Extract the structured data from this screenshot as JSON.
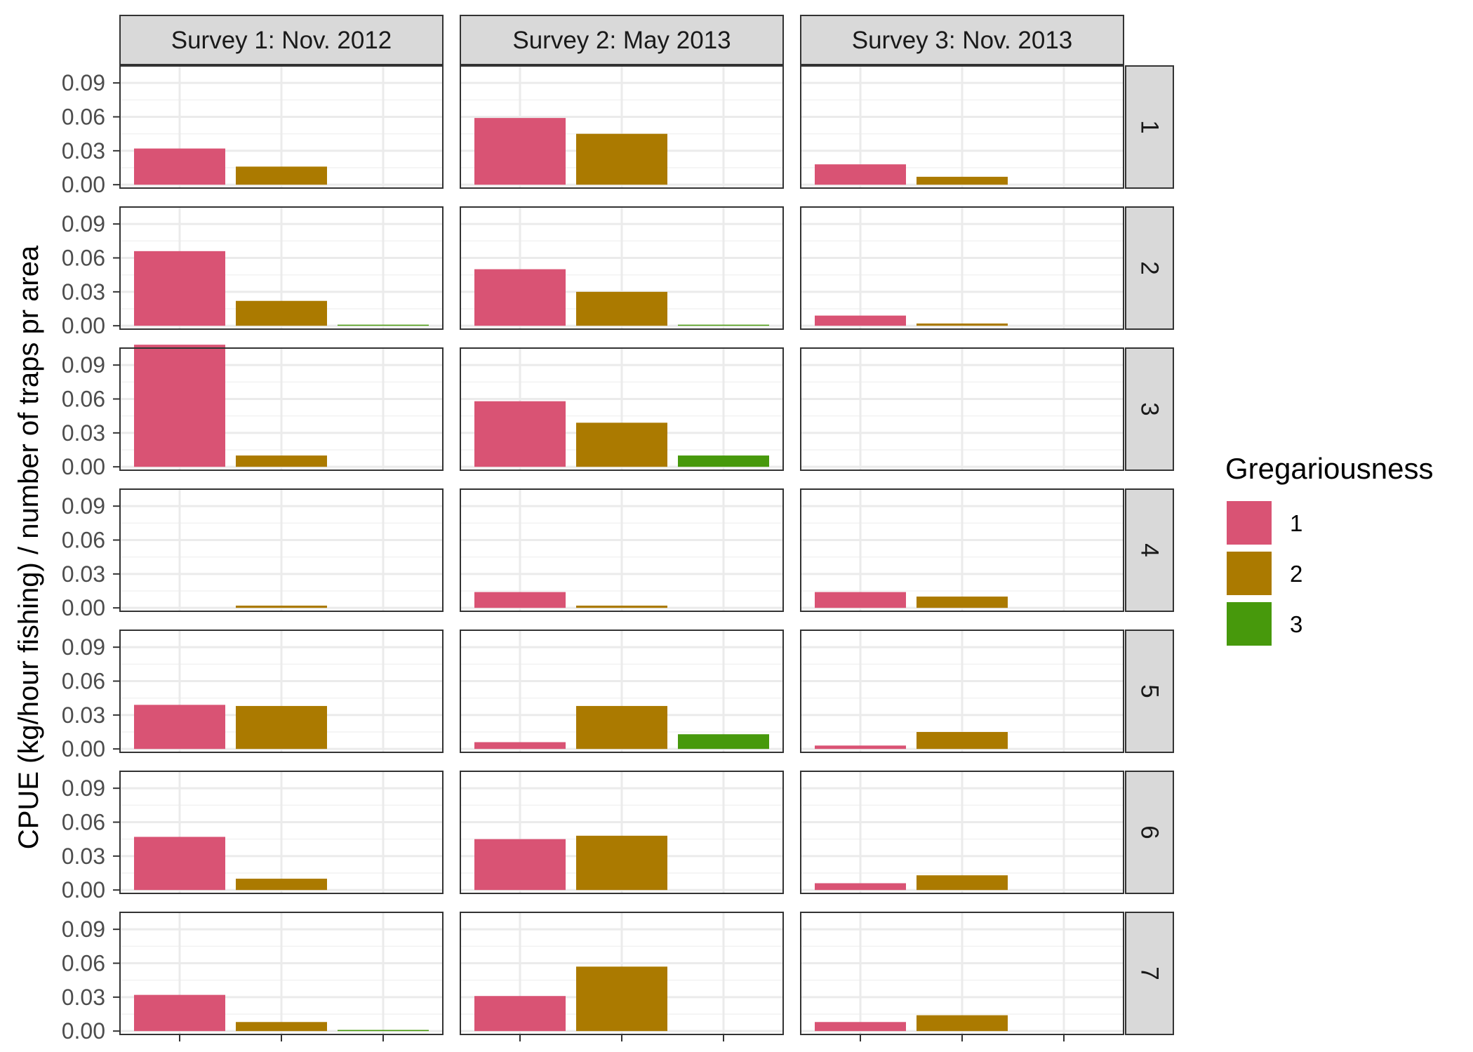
{
  "chart_data": {
    "type": "bar",
    "facet_columns": [
      "Survey 1: Nov. 2012",
      "Survey 2: May 2013",
      "Survey 3: Nov. 2013"
    ],
    "facet_rows": [
      "1",
      "2",
      "3",
      "4",
      "5",
      "6",
      "7"
    ],
    "categories": [
      "1",
      "2",
      "3"
    ],
    "ylabel": "CPUE (kg/hour fishing) / number of traps pr area",
    "xlabel": "",
    "ylim": [
      -0.003,
      0.105
    ],
    "yticks": [
      "0.00",
      "0.03",
      "0.06",
      "0.09"
    ],
    "grid": true,
    "legend": {
      "title": "Gregariousness",
      "position": "right",
      "items": [
        {
          "label": "1",
          "color": "#D95374"
        },
        {
          "label": "2",
          "color": "#AB7A00"
        },
        {
          "label": "3",
          "color": "#47990C"
        }
      ]
    },
    "panels": [
      {
        "row": "1",
        "col": "Survey 1: Nov. 2012",
        "values": [
          0.032,
          0.016,
          0
        ]
      },
      {
        "row": "1",
        "col": "Survey 2: May 2013",
        "values": [
          0.059,
          0.045,
          0
        ]
      },
      {
        "row": "1",
        "col": "Survey 3: Nov. 2013",
        "values": [
          0.018,
          0.007,
          0
        ]
      },
      {
        "row": "2",
        "col": "Survey 1: Nov. 2012",
        "values": [
          0.066,
          0.022,
          0.0005
        ]
      },
      {
        "row": "2",
        "col": "Survey 2: May 2013",
        "values": [
          0.05,
          0.03,
          0.0005
        ]
      },
      {
        "row": "2",
        "col": "Survey 3: Nov. 2013",
        "values": [
          0.009,
          0.002,
          0
        ]
      },
      {
        "row": "3",
        "col": "Survey 1: Nov. 2012",
        "values": [
          0.108,
          0.01,
          0
        ]
      },
      {
        "row": "3",
        "col": "Survey 2: May 2013",
        "values": [
          0.058,
          0.039,
          0.01
        ]
      },
      {
        "row": "3",
        "col": "Survey 3: Nov. 2013",
        "values": [
          0,
          0,
          0
        ]
      },
      {
        "row": "4",
        "col": "Survey 1: Nov. 2012",
        "values": [
          0,
          0.002,
          0
        ]
      },
      {
        "row": "4",
        "col": "Survey 2: May 2013",
        "values": [
          0.014,
          0.002,
          0
        ]
      },
      {
        "row": "4",
        "col": "Survey 3: Nov. 2013",
        "values": [
          0.014,
          0.01,
          0
        ]
      },
      {
        "row": "5",
        "col": "Survey 1: Nov. 2012",
        "values": [
          0.039,
          0.038,
          0
        ]
      },
      {
        "row": "5",
        "col": "Survey 2: May 2013",
        "values": [
          0.006,
          0.038,
          0.013
        ]
      },
      {
        "row": "5",
        "col": "Survey 3: Nov. 2013",
        "values": [
          0.003,
          0.015,
          0
        ]
      },
      {
        "row": "6",
        "col": "Survey 1: Nov. 2012",
        "values": [
          0.047,
          0.01,
          0
        ]
      },
      {
        "row": "6",
        "col": "Survey 2: May 2013",
        "values": [
          0.045,
          0.048,
          0
        ]
      },
      {
        "row": "6",
        "col": "Survey 3: Nov. 2013",
        "values": [
          0.006,
          0.013,
          0
        ]
      },
      {
        "row": "7",
        "col": "Survey 1: Nov. 2012",
        "values": [
          0.032,
          0.008,
          0.001
        ]
      },
      {
        "row": "7",
        "col": "Survey 2: May 2013",
        "values": [
          0.031,
          0.057,
          0
        ]
      },
      {
        "row": "7",
        "col": "Survey 3: Nov. 2013",
        "values": [
          0.008,
          0.014,
          0
        ]
      }
    ]
  }
}
